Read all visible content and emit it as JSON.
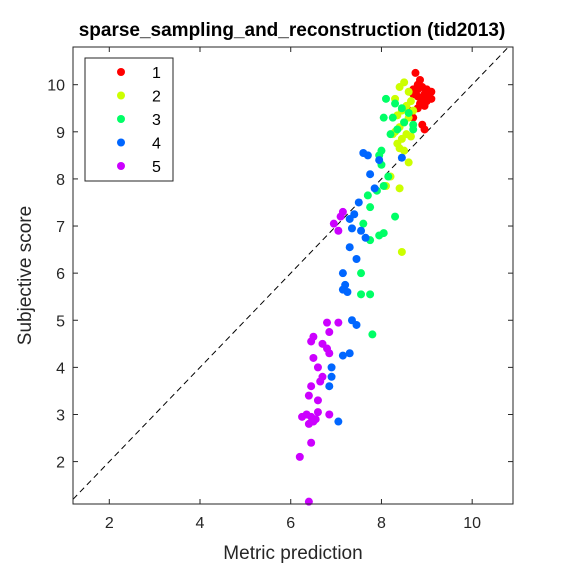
{
  "chart_data": {
    "type": "scatter",
    "title": "sparse_sampling_and_reconstruction (tid2013)",
    "xlabel": "Metric prediction",
    "ylabel": "Subjective score",
    "xlim": [
      1.2,
      10.9
    ],
    "ylim": [
      1.1,
      10.8
    ],
    "xticks": [
      2,
      4,
      6,
      8,
      10
    ],
    "yticks": [
      2,
      3,
      4,
      5,
      6,
      7,
      8,
      9,
      10
    ],
    "grid": false,
    "legend_position": "top-left",
    "diagonal": "dashed y = x reference line",
    "series": [
      {
        "name": "1",
        "color": "#ff0000",
        "points": [
          [
            8.75,
            10.25
          ],
          [
            8.85,
            10.1
          ],
          [
            8.8,
            10.0
          ],
          [
            8.9,
            9.95
          ],
          [
            8.7,
            9.9
          ],
          [
            9.0,
            9.85
          ],
          [
            8.95,
            9.8
          ],
          [
            9.1,
            9.85
          ],
          [
            8.8,
            9.75
          ],
          [
            8.9,
            9.7
          ],
          [
            9.0,
            9.65
          ],
          [
            8.7,
            9.8
          ],
          [
            8.85,
            9.6
          ],
          [
            9.05,
            9.75
          ],
          [
            8.95,
            9.55
          ],
          [
            8.8,
            9.5
          ],
          [
            8.75,
            9.9
          ],
          [
            8.6,
            9.45
          ],
          [
            8.9,
            9.15
          ],
          [
            8.95,
            9.05
          ],
          [
            8.7,
            9.3
          ],
          [
            9.0,
            9.9
          ],
          [
            8.8,
            9.9
          ],
          [
            9.1,
            9.7
          ]
        ]
      },
      {
        "name": "2",
        "color": "#ccff00",
        "points": [
          [
            8.5,
            10.05
          ],
          [
            8.4,
            9.95
          ],
          [
            8.6,
            9.85
          ],
          [
            8.3,
            9.7
          ],
          [
            8.55,
            9.55
          ],
          [
            8.45,
            9.45
          ],
          [
            8.7,
            9.45
          ],
          [
            8.35,
            9.35
          ],
          [
            8.6,
            9.3
          ],
          [
            8.5,
            9.2
          ],
          [
            8.4,
            9.1
          ],
          [
            8.3,
            9.0
          ],
          [
            8.55,
            8.95
          ],
          [
            8.45,
            8.85
          ],
          [
            8.65,
            8.9
          ],
          [
            8.35,
            8.75
          ],
          [
            8.4,
            8.65
          ],
          [
            8.5,
            8.6
          ],
          [
            8.6,
            8.35
          ],
          [
            8.2,
            8.05
          ],
          [
            8.1,
            7.85
          ],
          [
            8.4,
            7.8
          ],
          [
            8.45,
            6.45
          ],
          [
            8.65,
            9.65
          ],
          [
            8.25,
            8.95
          ]
        ]
      },
      {
        "name": "3",
        "color": "#00ff66",
        "points": [
          [
            8.1,
            9.7
          ],
          [
            8.3,
            9.6
          ],
          [
            8.45,
            9.5
          ],
          [
            8.6,
            9.4
          ],
          [
            8.25,
            9.3
          ],
          [
            8.05,
            9.3
          ],
          [
            8.5,
            9.2
          ],
          [
            8.7,
            9.15
          ],
          [
            8.35,
            9.05
          ],
          [
            8.2,
            8.95
          ],
          [
            8.0,
            8.6
          ],
          [
            7.95,
            8.5
          ],
          [
            8.15,
            8.05
          ],
          [
            8.05,
            7.85
          ],
          [
            7.9,
            7.75
          ],
          [
            7.7,
            7.65
          ],
          [
            7.75,
            7.4
          ],
          [
            8.3,
            7.2
          ],
          [
            7.6,
            7.05
          ],
          [
            8.05,
            6.85
          ],
          [
            7.95,
            6.8
          ],
          [
            7.75,
            6.7
          ],
          [
            7.55,
            6.0
          ],
          [
            7.55,
            5.55
          ],
          [
            7.75,
            5.55
          ],
          [
            7.8,
            4.7
          ],
          [
            8.0,
            8.3
          ],
          [
            8.7,
            9.05
          ]
        ]
      },
      {
        "name": "4",
        "color": "#0066ff",
        "points": [
          [
            7.6,
            8.55
          ],
          [
            7.7,
            8.5
          ],
          [
            7.95,
            8.4
          ],
          [
            7.75,
            8.1
          ],
          [
            8.45,
            8.45
          ],
          [
            7.85,
            7.8
          ],
          [
            7.5,
            7.5
          ],
          [
            7.4,
            7.25
          ],
          [
            7.3,
            7.15
          ],
          [
            7.35,
            6.95
          ],
          [
            7.65,
            6.75
          ],
          [
            7.55,
            6.9
          ],
          [
            7.3,
            6.55
          ],
          [
            7.45,
            6.3
          ],
          [
            7.15,
            6.0
          ],
          [
            7.2,
            5.75
          ],
          [
            7.15,
            5.65
          ],
          [
            7.25,
            5.6
          ],
          [
            7.35,
            5.0
          ],
          [
            7.45,
            4.9
          ],
          [
            7.3,
            4.3
          ],
          [
            7.15,
            4.25
          ],
          [
            6.9,
            4.0
          ],
          [
            6.85,
            3.6
          ],
          [
            6.9,
            3.8
          ],
          [
            7.05,
            2.85
          ]
        ]
      },
      {
        "name": "5",
        "color": "#cc00ff",
        "points": [
          [
            7.15,
            7.3
          ],
          [
            7.1,
            7.2
          ],
          [
            6.95,
            7.05
          ],
          [
            7.05,
            6.9
          ],
          [
            7.05,
            4.95
          ],
          [
            6.85,
            4.75
          ],
          [
            6.5,
            4.65
          ],
          [
            6.45,
            4.55
          ],
          [
            6.7,
            4.5
          ],
          [
            6.8,
            4.4
          ],
          [
            6.85,
            4.3
          ],
          [
            6.5,
            4.2
          ],
          [
            6.6,
            4.0
          ],
          [
            6.7,
            3.8
          ],
          [
            6.65,
            3.7
          ],
          [
            6.45,
            3.6
          ],
          [
            6.6,
            3.3
          ],
          [
            6.4,
            3.4
          ],
          [
            6.35,
            3.0
          ],
          [
            6.45,
            2.95
          ],
          [
            6.6,
            3.05
          ],
          [
            6.85,
            3.0
          ],
          [
            6.55,
            2.9
          ],
          [
            6.25,
            2.95
          ],
          [
            6.5,
            2.85
          ],
          [
            6.4,
            2.8
          ],
          [
            6.45,
            2.4
          ],
          [
            6.2,
            2.1
          ],
          [
            6.4,
            1.15
          ],
          [
            6.8,
            4.95
          ]
        ]
      }
    ]
  }
}
